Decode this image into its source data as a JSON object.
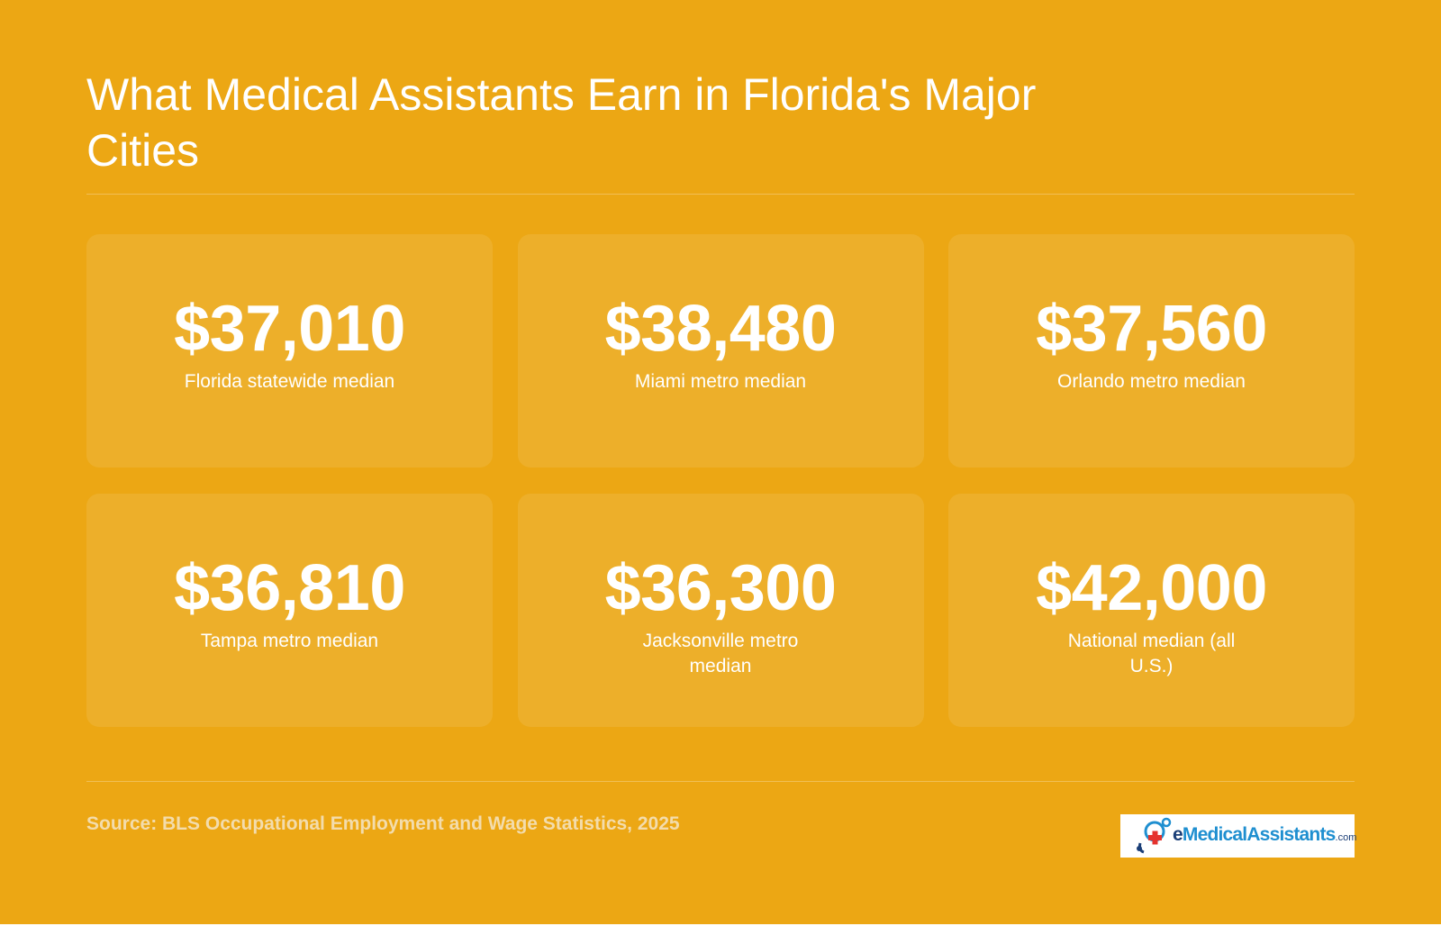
{
  "title": "What Medical Assistants Earn in Florida's Major Cities",
  "stats": [
    {
      "value": "$37,010",
      "label": "Florida statewide median"
    },
    {
      "value": "$38,480",
      "label": "Miami metro median"
    },
    {
      "value": "$37,560",
      "label": "Orlando metro median"
    },
    {
      "value": "$36,810",
      "label": "Tampa metro median"
    },
    {
      "value": "$36,300",
      "label": "Jacksonville metro median"
    },
    {
      "value": "$42,000",
      "label": "National median (all U.S.)"
    }
  ],
  "source": "Source: BLS Occupational Employment and Wage Statistics, 2025",
  "logo": {
    "prefix": "e",
    "name": "MedicalAssistants",
    "domain": ".com",
    "icon": "medical-cross-molecule-icon"
  },
  "colors": {
    "background": "#eca714",
    "card": "#edaf2a",
    "text": "#ffffff",
    "source_text": "#f3dcac",
    "logo_dark": "#1b3e77",
    "logo_blue": "#1f8fd0",
    "logo_red": "#e5322d"
  }
}
